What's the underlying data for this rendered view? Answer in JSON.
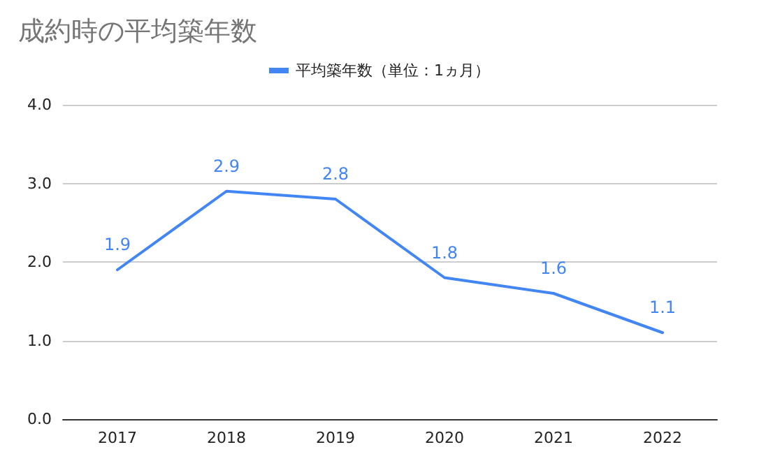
{
  "chart_data": {
    "type": "line",
    "title": "成約時の平均築年数",
    "categories": [
      "2017",
      "2018",
      "2019",
      "2020",
      "2021",
      "2022"
    ],
    "series": [
      {
        "name": "平均築年数（単位：1ヵ月）",
        "color": "#4285f4",
        "values": [
          1.9,
          2.9,
          2.8,
          1.8,
          1.6,
          1.1
        ]
      }
    ],
    "ylim": [
      0,
      4
    ],
    "yticks": [
      {
        "value": 0,
        "label": "0.0"
      },
      {
        "value": 1,
        "label": "1.0"
      },
      {
        "value": 2,
        "label": "2.0"
      },
      {
        "value": 3,
        "label": "3.0"
      },
      {
        "value": 4,
        "label": "4.0"
      }
    ],
    "grid": "y",
    "legend": "top",
    "data_labels": true,
    "marker": "none",
    "line_style": "solid"
  }
}
